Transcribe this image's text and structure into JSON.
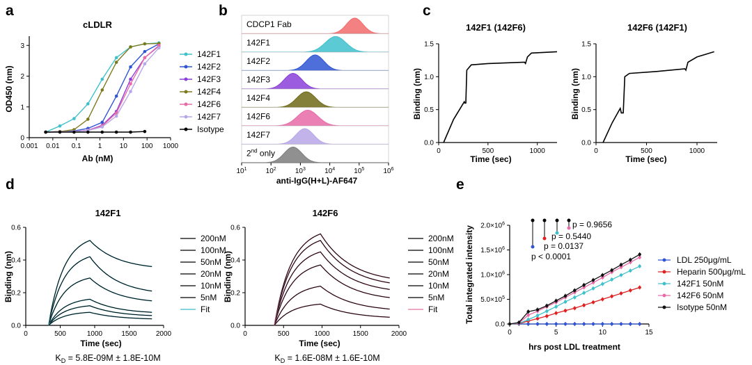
{
  "panel_labels": {
    "a": "a",
    "b": "b",
    "c": "c",
    "d": "d",
    "e": "e"
  },
  "chart_data": [
    {
      "id": "a",
      "type": "line",
      "title": "cLDLR",
      "xlabel": "Ab (nM)",
      "ylabel": "OD450 (nm)",
      "xscale": "log",
      "xlim": [
        0.001,
        1000
      ],
      "ylim": [
        0,
        3.3
      ],
      "xtick_labels": [
        "0.001",
        "0.01",
        "0.1",
        "1",
        "10",
        "100",
        "1000"
      ],
      "ytick_labels": [
        "0",
        "1",
        "2",
        "3"
      ],
      "x": [
        0.005,
        0.02,
        0.08,
        0.31,
        1.25,
        5,
        20,
        80,
        320
      ],
      "series": [
        {
          "name": "142F1",
          "color": "#3fc1cc",
          "values": [
            0.18,
            0.38,
            0.62,
            1.1,
            1.9,
            2.6,
            2.95,
            3.05,
            3.08
          ]
        },
        {
          "name": "142F2",
          "color": "#2f55d4",
          "values": [
            0.18,
            0.2,
            0.22,
            0.3,
            0.5,
            1.35,
            2.3,
            2.8,
            3.05
          ]
        },
        {
          "name": "142F3",
          "color": "#8a3fd9",
          "values": [
            0.18,
            0.19,
            0.2,
            0.24,
            0.4,
            0.85,
            1.9,
            2.6,
            2.98
          ]
        },
        {
          "name": "142F4",
          "color": "#7d7a1e",
          "values": [
            0.18,
            0.2,
            0.26,
            0.6,
            1.55,
            2.45,
            2.95,
            3.05,
            3.06
          ]
        },
        {
          "name": "142F6",
          "color": "#e86aa7",
          "values": [
            0.18,
            0.19,
            0.2,
            0.24,
            0.38,
            0.8,
            1.75,
            2.6,
            3.0
          ]
        },
        {
          "name": "142F7",
          "color": "#b7a6e8",
          "values": [
            0.18,
            0.19,
            0.2,
            0.23,
            0.35,
            0.7,
            1.5,
            2.4,
            2.92
          ]
        },
        {
          "name": "Isotype",
          "color": "#000000",
          "values": [
            0.18,
            0.18,
            0.18,
            0.18,
            0.18,
            0.18,
            0.18,
            0.2,
            null
          ]
        }
      ]
    },
    {
      "id": "b",
      "type": "histogram",
      "xlabel": "anti-IgG(H+L)-AF647",
      "xscale": "log",
      "xtick_exponents": [
        "1",
        "2",
        "3",
        "4",
        "5",
        "6"
      ],
      "rows": [
        {
          "label": "CDCP1 Fab",
          "color": "#f26b6b",
          "peak_log": 4.85,
          "width": 0.28
        },
        {
          "label": "142F1",
          "color": "#3fc1cc",
          "peak_log": 4.2,
          "width": 0.35
        },
        {
          "label": "142F2",
          "color": "#2f55d4",
          "peak_log": 3.5,
          "width": 0.3
        },
        {
          "label": "142F3",
          "color": "#8a3fd9",
          "peak_log": 2.75,
          "width": 0.3
        },
        {
          "label": "142F4",
          "color": "#6f6a17",
          "peak_log": 3.2,
          "width": 0.32
        },
        {
          "label": "142F6",
          "color": "#e86aa7",
          "peak_log": 3.25,
          "width": 0.35
        },
        {
          "label": "142F7",
          "color": "#b7a6e8",
          "peak_log": 3.15,
          "width": 0.3
        },
        {
          "label_pre": "2",
          "label_sup": "nd",
          "label_post": " only",
          "color": "#7d7d7d",
          "peak_log": 2.75,
          "width": 0.3
        }
      ]
    },
    {
      "id": "c1",
      "type": "line",
      "title": "142F1 (142F6)",
      "xlabel": "Time (sec)",
      "ylabel": "Binding (nm)",
      "xlim": [
        0,
        1200
      ],
      "ylim": [
        0,
        1.5
      ],
      "xtick_labels": [
        "0",
        "500",
        "1000"
      ],
      "ytick_labels": [
        "0.0",
        "0.5",
        "1.0",
        "1.5"
      ],
      "points": [
        [
          50,
          0.0
        ],
        [
          150,
          0.35
        ],
        [
          260,
          0.62
        ],
        [
          265,
          0.6
        ],
        [
          275,
          0.6
        ],
        [
          285,
          1.1
        ],
        [
          330,
          1.18
        ],
        [
          500,
          1.2
        ],
        [
          870,
          1.22
        ],
        [
          880,
          1.2
        ],
        [
          900,
          1.3
        ],
        [
          940,
          1.36
        ],
        [
          1200,
          1.38
        ]
      ]
    },
    {
      "id": "c2",
      "type": "line",
      "title": "142F6 (142F1)",
      "xlabel": "Time (sec)",
      "ylabel": "Binding (nm)",
      "xlim": [
        0,
        1200
      ],
      "ylim": [
        0,
        1.5
      ],
      "xtick_labels": [
        "0",
        "500",
        "1000"
      ],
      "ytick_labels": [
        "0.0",
        "0.5",
        "1.0",
        "1.5"
      ],
      "points": [
        [
          70,
          0.0
        ],
        [
          160,
          0.3
        ],
        [
          240,
          0.52
        ],
        [
          250,
          0.45
        ],
        [
          270,
          0.45
        ],
        [
          285,
          1.0
        ],
        [
          330,
          1.05
        ],
        [
          600,
          1.08
        ],
        [
          880,
          1.12
        ],
        [
          890,
          1.1
        ],
        [
          910,
          1.22
        ],
        [
          1000,
          1.3
        ],
        [
          1170,
          1.38
        ]
      ]
    },
    {
      "id": "d1",
      "type": "line",
      "title": "142F1",
      "xlabel": "Time (sec)",
      "ylabel": "Binding (nm)",
      "xlim": [
        0,
        2000
      ],
      "ylim": [
        0,
        0.6
      ],
      "xtick_labels": [
        "0",
        "500",
        "1000",
        "1500",
        "2000"
      ],
      "ytick_labels": [
        "0.0",
        "0.2",
        "0.4",
        "0.6"
      ],
      "assoc_start": 330,
      "dissoc_start": 930,
      "end": 1830,
      "fit_color": "#5ec6d6",
      "series": [
        {
          "name": "200nM",
          "peak": 0.52,
          "final": 0.36
        },
        {
          "name": "100nM",
          "peak": 0.42,
          "final": 0.21
        },
        {
          "name": "50nM",
          "peak": 0.29,
          "final": 0.15
        },
        {
          "name": "20nM",
          "peak": 0.16,
          "final": 0.08
        },
        {
          "name": "10nM",
          "peak": 0.12,
          "final": 0.06
        },
        {
          "name": "5nM",
          "peak": 0.08,
          "final": 0.04
        }
      ],
      "fit_label": "Fit",
      "kd": {
        "prefix": "K",
        "sub": "D",
        "text": " = 5.8E-09M ± 1.8E-10M"
      }
    },
    {
      "id": "d2",
      "type": "line",
      "title": "142F6",
      "xlabel": "Time (sec)",
      "ylabel": "Binding (nm)",
      "xlim": [
        0,
        2000
      ],
      "ylim": [
        0,
        0.6
      ],
      "xtick_labels": [
        "0",
        "500",
        "1000",
        "1500",
        "2000"
      ],
      "ytick_labels": [
        "0.0",
        "0.2",
        "0.4",
        "0.6"
      ],
      "assoc_start": 380,
      "dissoc_start": 980,
      "end": 1880,
      "fit_color": "#e58bb0",
      "series": [
        {
          "name": "200nM",
          "peak": 0.56,
          "final": 0.29
        },
        {
          "name": "100nM",
          "peak": 0.52,
          "final": 0.26
        },
        {
          "name": "50nM",
          "peak": 0.45,
          "final": 0.22
        },
        {
          "name": "20nM",
          "peak": 0.37,
          "final": 0.17
        },
        {
          "name": "10nM",
          "peak": 0.24,
          "final": 0.1
        },
        {
          "name": "5nM",
          "peak": 0.13,
          "final": 0.05
        }
      ],
      "fit_label": "Fit",
      "kd": {
        "prefix": "K",
        "sub": "D",
        "text": " = 1.6E-08M ± 1.6E-10M"
      }
    },
    {
      "id": "e",
      "type": "line",
      "xlabel": "hrs post LDL treatment",
      "ylabel": "Total integrated intensity",
      "xlim": [
        0,
        15
      ],
      "ylim": [
        0,
        2000000
      ],
      "xtick_labels": [
        "0",
        "5",
        "10",
        "15"
      ],
      "ytick_labels": [
        {
          "m": "0.0",
          "e": ""
        },
        {
          "m": "5.0×10",
          "e": "5"
        },
        {
          "m": "1.0×10",
          "e": "6"
        },
        {
          "m": "1.5×10",
          "e": "6"
        },
        {
          "m": "2.0×10",
          "e": "6"
        }
      ],
      "x": [
        0,
        1,
        2,
        3,
        4,
        5,
        6,
        7,
        8,
        9,
        10,
        11,
        12,
        13,
        14
      ],
      "series": [
        {
          "name": "LDL 250μg/mL",
          "color": "#2f55d4",
          "values": [
            0,
            0,
            0,
            0,
            0,
            0,
            0,
            0,
            0,
            0,
            0,
            0,
            0,
            0,
            0
          ]
        },
        {
          "name": "Heparin 500μg/mL",
          "color": "#e02020",
          "values": [
            0,
            5000,
            60000,
            110000,
            160000,
            220000,
            270000,
            320000,
            380000,
            440000,
            500000,
            560000,
            620000,
            680000,
            740000
          ]
        },
        {
          "name": "142F1 50nM",
          "color": "#3fc1cc",
          "values": [
            0,
            10000,
            90000,
            170000,
            260000,
            350000,
            450000,
            540000,
            630000,
            720000,
            810000,
            900000,
            990000,
            1080000,
            1170000
          ]
        },
        {
          "name": "142F6 50nM",
          "color": "#e86aa7",
          "values": [
            0,
            20000,
            180000,
            260000,
            350000,
            440000,
            540000,
            640000,
            740000,
            840000,
            940000,
            1050000,
            1150000,
            1250000,
            1350000
          ]
        },
        {
          "name": "Isotype 50nM",
          "color": "#111111",
          "values": [
            0,
            30000,
            250000,
            290000,
            370000,
            470000,
            570000,
            680000,
            790000,
            890000,
            990000,
            1090000,
            1200000,
            1300000,
            1410000
          ]
        }
      ],
      "pvalues": [
        "p = 0.9656",
        "p = 0.5440",
        "p = 0.0137",
        "p < 0.0001"
      ]
    }
  ]
}
